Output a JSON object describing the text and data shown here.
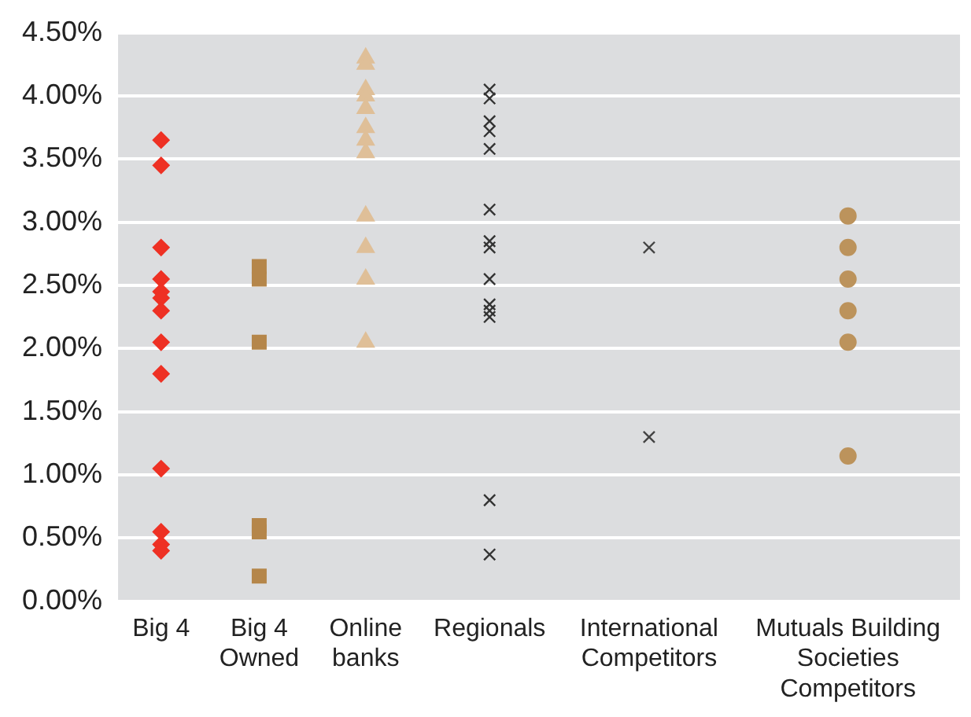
{
  "chart_data": {
    "type": "scatter",
    "categories": [
      "Big 4",
      "Big 4\nOwned",
      "Online\nbanks",
      "Regionals",
      "International\nCompetitors",
      "Mutuals Building\nSocieties\nCompetitors"
    ],
    "series": [
      {
        "color": "#ee3124",
        "marker": "diamond",
        "x": [
          "Big 4",
          "Big 4",
          "Big 4",
          "Big 4",
          "Big 4",
          "Big 4",
          "Big 4",
          "Big 4",
          "Big 4",
          "Big 4",
          "Big 4",
          "Big 4",
          "Big 4"
        ],
        "values": [
          3.65,
          3.45,
          2.8,
          2.55,
          2.45,
          2.4,
          2.3,
          2.05,
          1.8,
          1.05,
          0.55,
          0.45,
          0.4
        ]
      },
      {
        "color": "#b5864a",
        "marker": "square",
        "x": [
          "Big 4\nOwned",
          "Big 4\nOwned",
          "Big 4\nOwned",
          "Big 4\nOwned",
          "Big 4\nOwned",
          "Big 4\nOwned"
        ],
        "values": [
          2.65,
          2.55,
          2.05,
          0.6,
          0.55,
          0.2
        ]
      },
      {
        "color": "#dfbf98",
        "marker": "triangle",
        "x": [
          "Online\nbanks",
          "Online\nbanks",
          "Online\nbanks",
          "Online\nbanks",
          "Online\nbanks",
          "Online\nbanks",
          "Online\nbanks",
          "Online\nbanks",
          "Online\nbanks",
          "Online\nbanks",
          "Online\nbanks",
          "Online\nbanks"
        ],
        "values": [
          4.3,
          4.25,
          4.05,
          4.0,
          3.9,
          3.75,
          3.65,
          3.55,
          3.05,
          2.8,
          2.55,
          2.05
        ]
      },
      {
        "color": "#333333",
        "marker": "cross",
        "x": [
          "Regionals",
          "Regionals",
          "Regionals",
          "Regionals",
          "Regionals",
          "Regionals",
          "Regionals",
          "Regionals",
          "Regionals",
          "Regionals",
          "Regionals",
          "Regionals",
          "Regionals",
          "Regionals"
        ],
        "values": [
          4.05,
          3.98,
          3.8,
          3.72,
          3.58,
          3.1,
          2.85,
          2.8,
          2.55,
          2.35,
          2.3,
          2.25,
          0.8,
          0.37
        ]
      },
      {
        "color": "#444444",
        "marker": "cross",
        "x": [
          "International\nCompetitors",
          "International\nCompetitors"
        ],
        "values": [
          2.8,
          1.3
        ]
      },
      {
        "color": "#bc935c",
        "marker": "circle",
        "x": [
          "Mutuals Building\nSocieties\nCompetitors",
          "Mutuals Building\nSocieties\nCompetitors",
          "Mutuals Building\nSocieties\nCompetitors",
          "Mutuals Building\nSocieties\nCompetitors",
          "Mutuals Building\nSocieties\nCompetitors",
          "Mutuals Building\nSocieties\nCompetitors"
        ],
        "values": [
          3.05,
          2.8,
          2.55,
          2.3,
          2.05,
          1.15
        ]
      }
    ],
    "ylim": [
      0,
      4.5
    ],
    "yticks": [
      {
        "value": 0,
        "label": "0.00%"
      },
      {
        "value": 0.5,
        "label": "0.50%"
      },
      {
        "value": 1,
        "label": "1.00%"
      },
      {
        "value": 1.5,
        "label": "1.50%"
      },
      {
        "value": 2,
        "label": "2.00%"
      },
      {
        "value": 2.5,
        "label": "2.50%"
      },
      {
        "value": 3,
        "label": "3.00%"
      },
      {
        "value": 3.5,
        "label": "3.50%"
      },
      {
        "value": 4,
        "label": "4.00%"
      },
      {
        "value": 4.5,
        "label": "4.50%"
      }
    ],
    "grid": "y",
    "legend": false
  }
}
